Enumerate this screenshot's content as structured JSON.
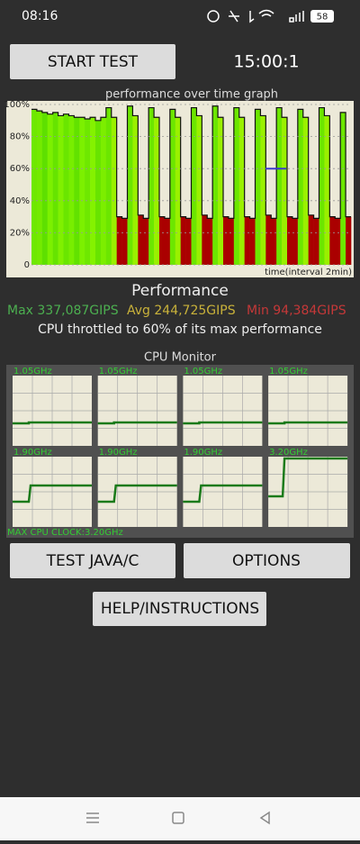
{
  "status_bar": {
    "time": "08:16",
    "battery": "58"
  },
  "buttons": {
    "start": "START TEST",
    "test_java": "TEST JAVA/C",
    "options": "OPTIONS",
    "help": "HELP/INSTRUCTIONS"
  },
  "timer": "15:00:1",
  "chart_data": {
    "type": "bar",
    "title": "performance over time graph",
    "x_label": "time(interval 2min)",
    "values": [
      97,
      96,
      95,
      94,
      95,
      93,
      94,
      93,
      92,
      92,
      91,
      92,
      90,
      92,
      98,
      92,
      30,
      29,
      99,
      93,
      31,
      29,
      98,
      92,
      30,
      29,
      97,
      92,
      30,
      29,
      98,
      93,
      31,
      29,
      99,
      92,
      30,
      29,
      98,
      92,
      30,
      29,
      97,
      93,
      31,
      29,
      98,
      92,
      30,
      29,
      97,
      92,
      31,
      29,
      98,
      93,
      30,
      29,
      95,
      30
    ],
    "colors": [
      "#6fe800",
      "#74ea00",
      "#5ee000",
      "#7cf000",
      "#66e400",
      "#80f000",
      "#6ae600",
      "#78ee00",
      "#62e200",
      "#7cf000",
      "#6ee800",
      "#84f200",
      "#68e400",
      "#7cee00",
      "#6ce600",
      "#9af000",
      "#aa0000",
      "#aa0000",
      "#6ce600",
      "#9af000",
      "#aa0000",
      "#aa0000",
      "#6ce600",
      "#9af000",
      "#aa0000",
      "#aa0000",
      "#6ce600",
      "#9af000",
      "#aa0000",
      "#aa0000",
      "#6ce600",
      "#9af000",
      "#aa0000",
      "#aa0000",
      "#6ce600",
      "#9af000",
      "#aa0000",
      "#aa0000",
      "#6ce600",
      "#9af000",
      "#aa0000",
      "#aa0000",
      "#6ce600",
      "#9af000",
      "#aa0000",
      "#aa0000",
      "#6ce600",
      "#9af000",
      "#aa0000",
      "#aa0000",
      "#6ce600",
      "#9af000",
      "#aa0000",
      "#aa0000",
      "#6ce600",
      "#9af000",
      "#aa0000",
      "#aa0000",
      "#6ce600",
      "#aa0000"
    ],
    "ylim": [
      0,
      100
    ],
    "yticks": [
      0,
      {
        "value": 20,
        "label": "20%"
      },
      {
        "value": 40,
        "label": "40%"
      },
      {
        "value": 60,
        "label": "60%"
      },
      {
        "value": 80,
        "label": "80%"
      },
      {
        "value": 100,
        "label": "100%"
      }
    ],
    "grid": true,
    "reference_line": {
      "value": 60,
      "color": "#3a3acc"
    }
  },
  "performance": {
    "title": "Performance",
    "max": "Max 337,087GIPS",
    "avg": "Avg 244,725GIPS",
    "min": "Min 94,384GIPS",
    "throttle": "CPU throttled to 60% of its max performance"
  },
  "cpu_monitor": {
    "title": "CPU Monitor",
    "cores": [
      "1.05GHz",
      "1.05GHz",
      "1.05GHz",
      "1.05GHz",
      "1.90GHz",
      "1.90GHz",
      "1.90GHz",
      "3.20GHz"
    ],
    "max_clock": "MAX CPU CLOCK:3.20GHz"
  }
}
